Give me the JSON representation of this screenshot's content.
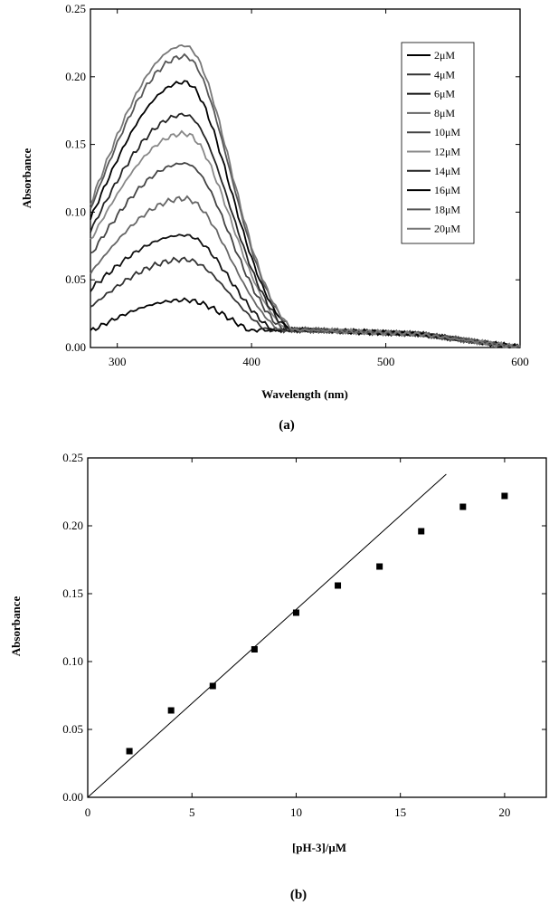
{
  "chart_data": [
    {
      "type": "line",
      "panel_label": "(a)",
      "xlabel": "Wavelength (nm)",
      "ylabel": "Absorbance",
      "xlim": [
        280,
        600
      ],
      "ylim": [
        0,
        0.25
      ],
      "xticks": [
        "300",
        "400",
        "500",
        "600"
      ],
      "yticks": [
        "0.00",
        "0.05",
        "0.10",
        "0.15",
        "0.20",
        "0.25"
      ],
      "grid": false,
      "legend_position": "top-right",
      "peak_wavelength": 350,
      "series": [
        {
          "name": "2μM",
          "peak": 0.035,
          "start": 0.012,
          "color": "#000000"
        },
        {
          "name": "4μM",
          "peak": 0.065,
          "start": 0.03,
          "color": "#333333"
        },
        {
          "name": "6μM",
          "peak": 0.083,
          "start": 0.043,
          "color": "#111111"
        },
        {
          "name": "8μM",
          "peak": 0.11,
          "start": 0.055,
          "color": "#666666"
        },
        {
          "name": "10μM",
          "peak": 0.136,
          "start": 0.068,
          "color": "#444444"
        },
        {
          "name": "12μM",
          "peak": 0.158,
          "start": 0.079,
          "color": "#888888"
        },
        {
          "name": "14μM",
          "peak": 0.172,
          "start": 0.086,
          "color": "#222222"
        },
        {
          "name": "16μM",
          "peak": 0.196,
          "start": 0.095,
          "color": "#000000"
        },
        {
          "name": "18μM",
          "peak": 0.215,
          "start": 0.102,
          "color": "#555555"
        },
        {
          "name": "20μM",
          "peak": 0.223,
          "start": 0.106,
          "color": "#777777"
        }
      ]
    },
    {
      "type": "scatter",
      "panel_label": "(b)",
      "xlabel": "[pH-3]/μM",
      "ylabel": "Absorbance",
      "xlim": [
        0,
        22
      ],
      "ylim": [
        0,
        0.25
      ],
      "xticks": [
        "0",
        "5",
        "10",
        "15",
        "20"
      ],
      "yticks": [
        "0.00",
        "0.05",
        "0.10",
        "0.15",
        "0.20",
        "0.25"
      ],
      "grid": false,
      "x": [
        2,
        4,
        6,
        8,
        10,
        12,
        14,
        16,
        18,
        20
      ],
      "y": [
        0.034,
        0.064,
        0.082,
        0.109,
        0.136,
        0.156,
        0.17,
        0.196,
        0.214,
        0.222
      ],
      "fit_line": {
        "x": [
          0,
          17.2
        ],
        "y": [
          0,
          0.238
        ]
      }
    }
  ]
}
